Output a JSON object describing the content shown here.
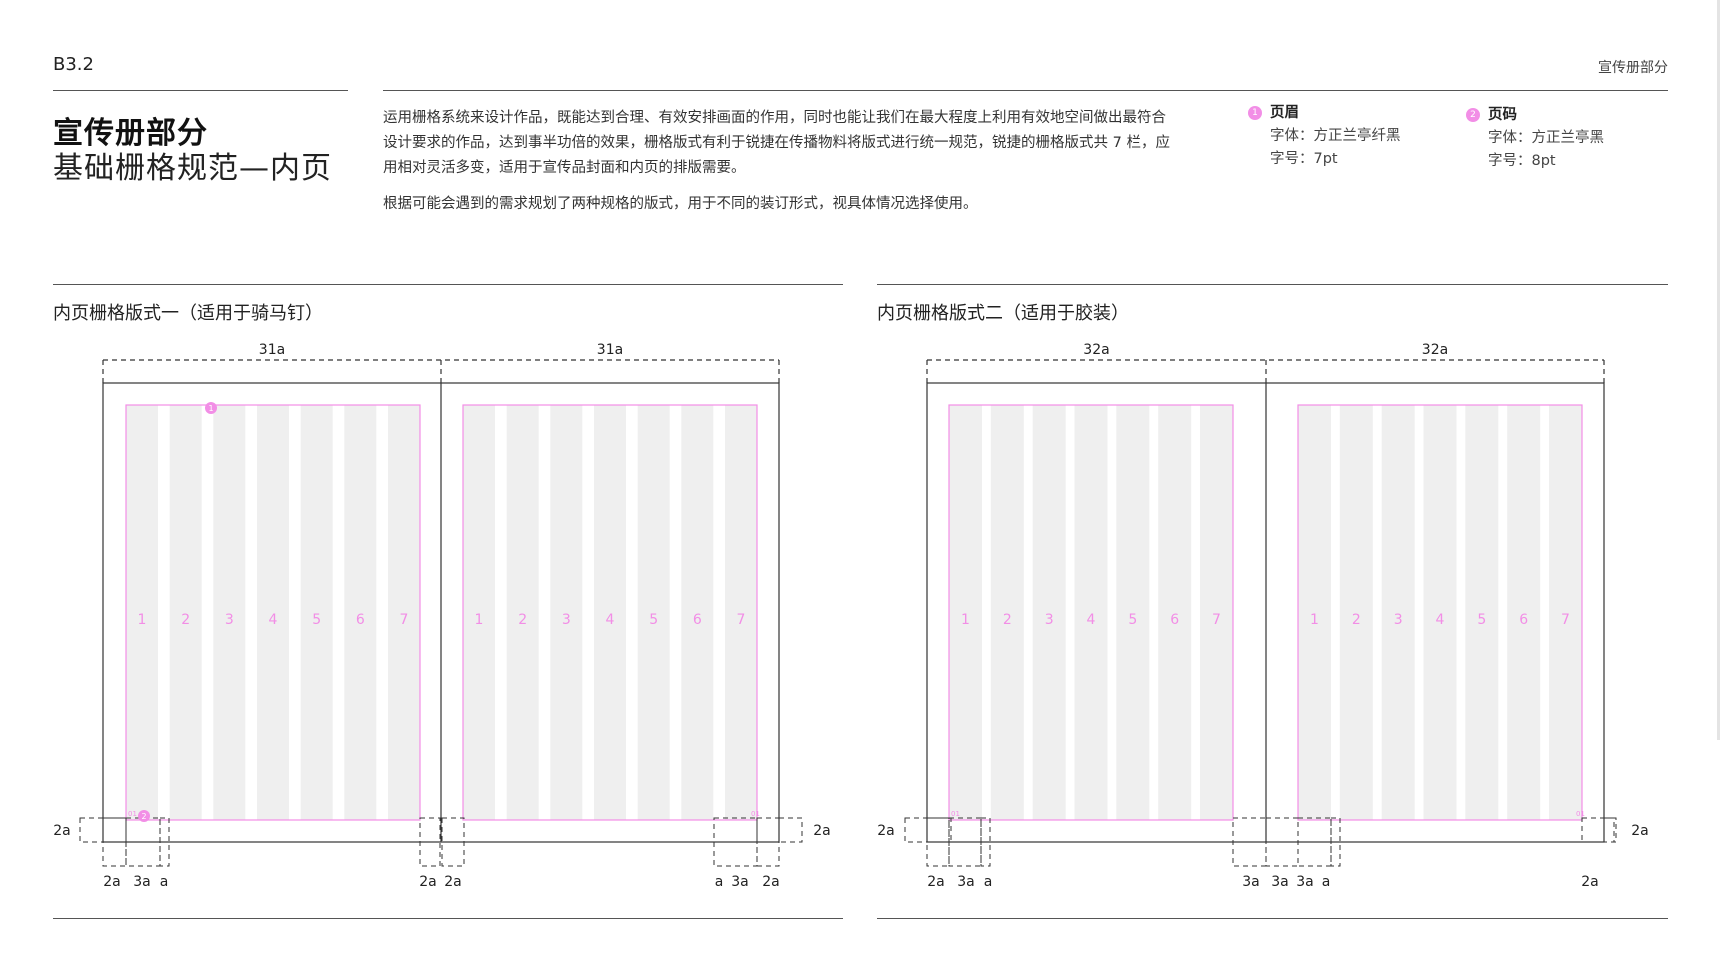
{
  "header": {
    "code": "B3.2",
    "breadcrumb": "宣传册部分"
  },
  "title": {
    "line1": "宣传册部分",
    "line2": "基础栅格规范—内页"
  },
  "intro": {
    "p1": "运用栅格系统来设计作品，既能达到合理、有效安排画面的作用，同时也能让我们在最大程度上利用有效地空间做出最符合设计要求的作品，达到事半功倍的效果，栅格版式有利于锐捷在传播物料将版式进行统一规范，锐捷的栅格版式共 7 栏，应用相对灵活多变，适用于宣传品封面和内页的排版需要。",
    "p2": "根据可能会遇到的需求规划了两种规格的版式，用于不同的装订形式，视具体情况选择使用。"
  },
  "notes": [
    {
      "num": "1",
      "title": "页眉",
      "font": "字体：方正兰亭纤黑",
      "size": "字号：7pt"
    },
    {
      "num": "2",
      "title": "页码",
      "font": "字体：方正兰亭黑",
      "size": "字号：8pt"
    }
  ],
  "layouts": [
    {
      "title": "内页栅格版式一（适用于骑马钉）",
      "page_width_label": "31a",
      "columns": [
        "1",
        "2",
        "3",
        "4",
        "5",
        "6",
        "7"
      ],
      "side_label": "2a",
      "bottom_labels": [
        "2a",
        "3a",
        "a",
        "2a",
        "2a",
        "a",
        "3a",
        "2a"
      ],
      "markers": [
        "1",
        "2"
      ]
    },
    {
      "title": "内页栅格版式二（适用于胶装）",
      "page_width_label": "32a",
      "columns": [
        "1",
        "2",
        "3",
        "4",
        "5",
        "6",
        "7"
      ],
      "side_label": "2a",
      "bottom_labels": [
        "2a",
        "3a",
        "a",
        "3a",
        "3a",
        "3a",
        "a",
        "2a"
      ]
    }
  ],
  "colors": {
    "accent_pink": "#f28ee6",
    "column_fill": "#efefef",
    "rule": "#555555"
  }
}
